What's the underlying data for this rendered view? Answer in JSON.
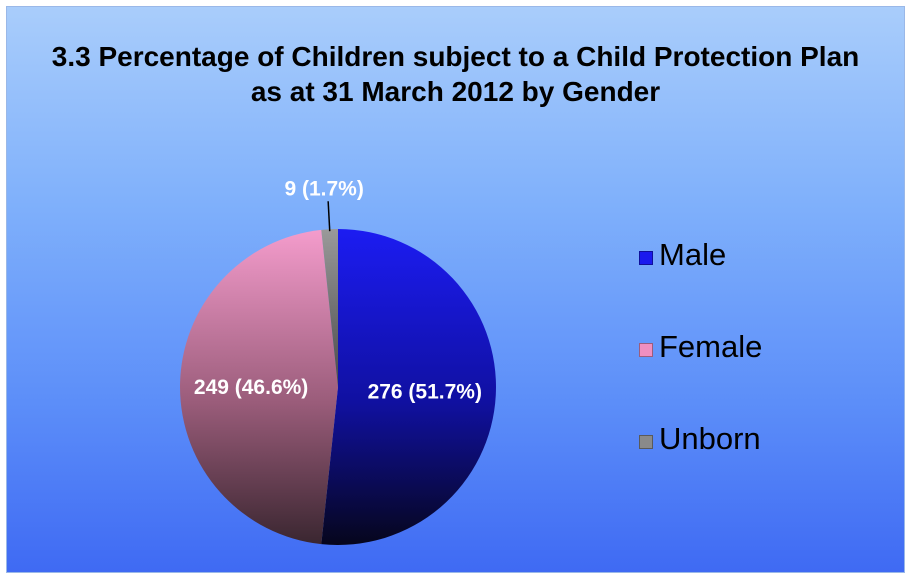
{
  "chart_data": {
    "type": "pie",
    "title": "3.3 Percentage of Children subject to a Child Protection Plan as at 31 March 2012 by Gender",
    "legend_position": "right",
    "slices": [
      {
        "name": "Male",
        "value": 276,
        "percent": 51.7,
        "label": "276 (51.7%)",
        "color": "#1a1aee"
      },
      {
        "name": "Female",
        "value": 249,
        "percent": 46.6,
        "label": "249 (46.6%)",
        "color": "#f08fc0"
      },
      {
        "name": "Unborn",
        "value": 9,
        "percent": 1.7,
        "label": "9 (1.7%)",
        "color": "#8a8a8a"
      }
    ]
  }
}
